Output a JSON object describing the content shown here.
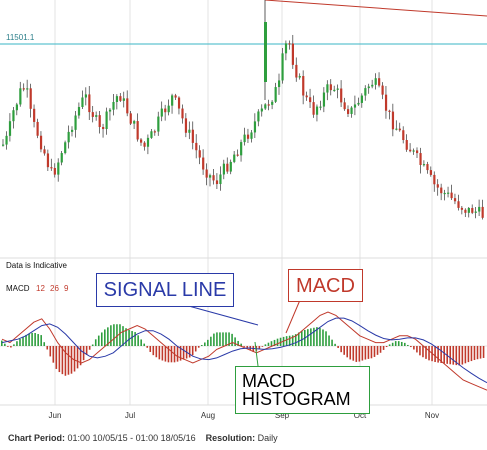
{
  "price_label": "11501.1",
  "indicative_note": "Data is Indicative",
  "macd_indicator": {
    "name": "MACD",
    "params": [
      "12",
      "26",
      "9"
    ],
    "param_color": "#c0392b"
  },
  "annotations": {
    "signal_line": "SIGNAL LINE",
    "macd": "MACD",
    "histogram_line1": "MACD",
    "histogram_line2": "HISTOGRAM"
  },
  "footer": {
    "period_label": "Chart Period:",
    "period_value": "01:00 10/05/15 - 01:00 18/05/16",
    "resolution_label": "Resolution:",
    "resolution_value": "Daily"
  },
  "colors": {
    "bull": "#2e9e3e",
    "bear": "#c0392b",
    "wick": "#333333",
    "level_line": "#39b6c6",
    "signal_line": "#2a3aa8",
    "macd_line": "#c0392b",
    "grid": "#e3e3e3"
  },
  "chart_data": [
    {
      "type": "candlestick",
      "x_ticks": [
        "Jun",
        "Jul",
        "Aug",
        "Sep",
        "Oct",
        "Nov"
      ],
      "horizontal_level": 11501.1,
      "shape": [
        0.62,
        0.58,
        0.45,
        0.38,
        0.3,
        0.35,
        0.5,
        0.55,
        0.62,
        0.7,
        0.78,
        0.74,
        0.66,
        0.6,
        0.52,
        0.46,
        0.4,
        0.36,
        0.42,
        0.48,
        0.55,
        0.5,
        0.44,
        0.38,
        0.34,
        0.4,
        0.46,
        0.52,
        0.58,
        0.64,
        0.6,
        0.56,
        0.5,
        0.45,
        0.4,
        0.36,
        0.42,
        0.48,
        0.54,
        0.6,
        0.66,
        0.72,
        0.76,
        0.8,
        0.82,
        0.78,
        0.74,
        0.7,
        0.66,
        0.62,
        0.58,
        0.54,
        0.5,
        0.46,
        0.42,
        0.38,
        0.34,
        0.3,
        0.1,
        0.06,
        0.18,
        0.26,
        0.34,
        0.4,
        0.44,
        0.4,
        0.36,
        0.32,
        0.3,
        0.34,
        0.38,
        0.42,
        0.44,
        0.4,
        0.36,
        0.32,
        0.28,
        0.3,
        0.36,
        0.42,
        0.48,
        0.52,
        0.56,
        0.6,
        0.64,
        0.68,
        0.72,
        0.76,
        0.8,
        0.84,
        0.86,
        0.88,
        0.9,
        0.92,
        0.94,
        0.96,
        0.98,
        0.97,
        0.99,
        1.0
      ]
    },
    {
      "type": "macd",
      "series": [
        {
          "name": "MACD",
          "values": [
            0.2,
            0.1,
            0.3,
            0.5,
            0.7,
            0.8,
            0.5,
            0.1,
            -0.2,
            -0.4,
            -0.5,
            -0.4,
            -0.2,
            0.0,
            0.2,
            0.4,
            0.5,
            0.6,
            0.5,
            0.3,
            0.1,
            -0.1,
            -0.3,
            -0.4,
            -0.5,
            -0.4,
            -0.3,
            -0.1,
            0.0,
            0.1,
            0.0,
            -0.1,
            -0.2,
            -0.1,
            0.0,
            0.1,
            0.2,
            0.3,
            0.5,
            0.7,
            0.9,
            1.0,
            0.9,
            0.7,
            0.5,
            0.3,
            0.2,
            0.1,
            0.1,
            0.2,
            0.3,
            0.3,
            0.2,
            0.0,
            -0.2,
            -0.4,
            -0.6,
            -0.8,
            -1.0,
            -1.1,
            -1.2,
            -1.3
          ]
        },
        {
          "name": "SIGNAL LINE",
          "values": [
            0.1,
            0.15,
            0.2,
            0.3,
            0.45,
            0.6,
            0.65,
            0.55,
            0.35,
            0.1,
            -0.15,
            -0.3,
            -0.35,
            -0.3,
            -0.2,
            0.0,
            0.2,
            0.35,
            0.45,
            0.45,
            0.35,
            0.2,
            0.0,
            -0.15,
            -0.3,
            -0.38,
            -0.4,
            -0.35,
            -0.25,
            -0.15,
            -0.08,
            -0.06,
            -0.08,
            -0.1,
            -0.08,
            -0.04,
            0.02,
            0.1,
            0.22,
            0.38,
            0.55,
            0.72,
            0.82,
            0.82,
            0.74,
            0.6,
            0.45,
            0.32,
            0.22,
            0.18,
            0.2,
            0.24,
            0.24,
            0.18,
            0.06,
            -0.1,
            -0.28,
            -0.46,
            -0.64,
            -0.8,
            -0.95,
            -1.08
          ]
        }
      ]
    }
  ]
}
